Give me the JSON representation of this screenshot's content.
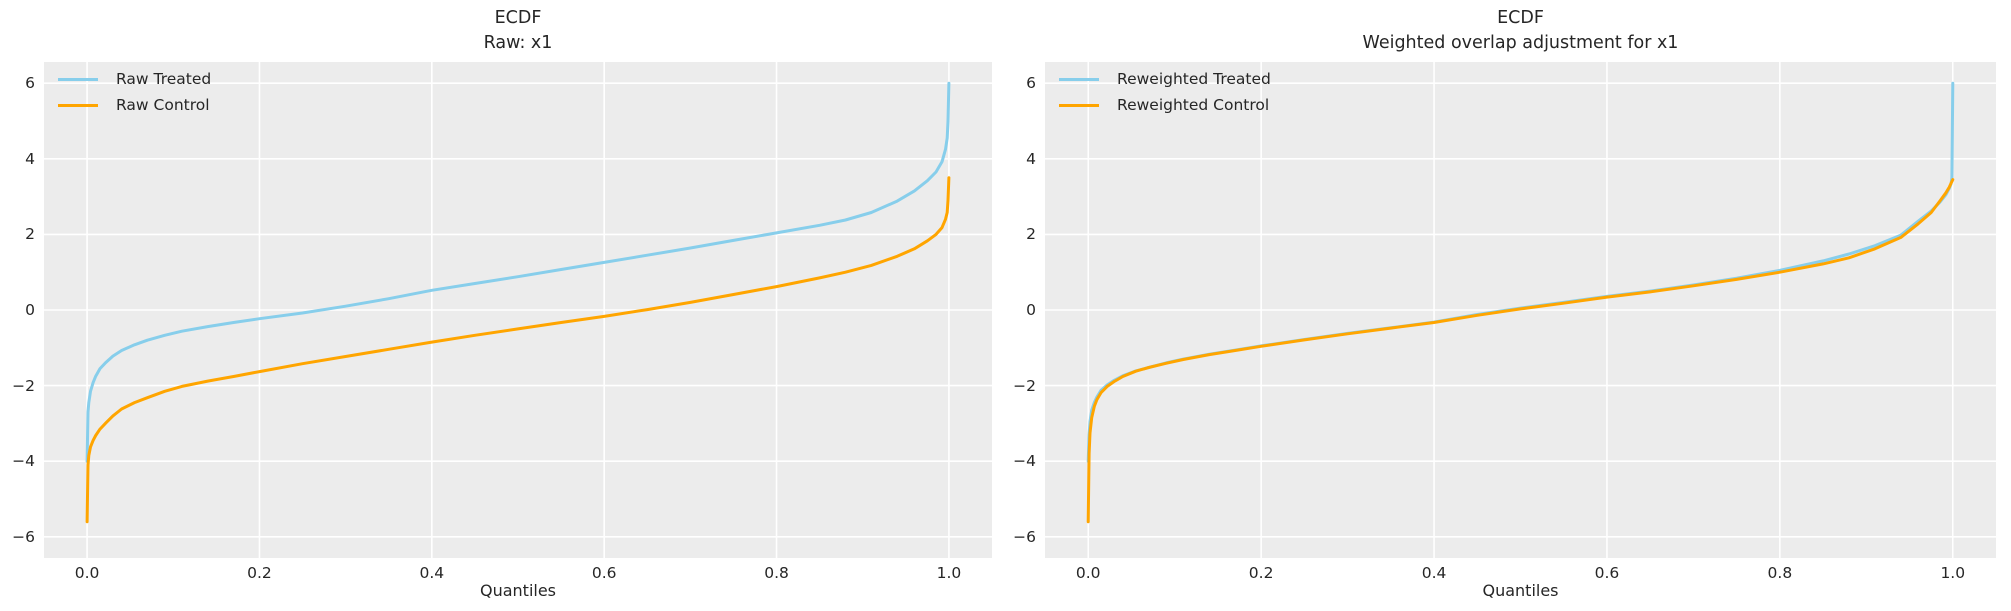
{
  "figure": {
    "background": "#FFFFFF"
  },
  "colors": {
    "treated_line": "#87CEEB",
    "control_line": "#FFA500",
    "axes_bg": "#ECECEC",
    "grid": "#FFFFFF",
    "text": "#262626"
  },
  "chart_data": [
    {
      "type": "line",
      "title_line1": "ECDF",
      "title_line2": "Raw: x1",
      "xlabel": "Quantiles",
      "ylabel": "",
      "grid": true,
      "legend_position": "upper-left",
      "xlim": [
        -0.05,
        1.05
      ],
      "ylim": [
        -6.56,
        6.56
      ],
      "x_ticks": [
        0.0,
        0.2,
        0.4,
        0.6,
        0.8,
        1.0
      ],
      "x_tick_labels": [
        "0.0",
        "0.2",
        "0.4",
        "0.6",
        "0.8",
        "1.0"
      ],
      "y_ticks": [
        -6,
        -4,
        -2,
        0,
        2,
        4,
        6
      ],
      "y_tick_labels": [
        "−6",
        "−4",
        "−2",
        "0",
        "2",
        "4",
        "6"
      ],
      "series": [
        {
          "name": "Raw Treated",
          "color": "#87CEEB",
          "x": [
            0.0,
            0.001,
            0.002,
            0.004,
            0.007,
            0.01,
            0.015,
            0.022,
            0.03,
            0.04,
            0.055,
            0.07,
            0.09,
            0.11,
            0.14,
            0.17,
            0.2,
            0.25,
            0.3,
            0.35,
            0.4,
            0.45,
            0.5,
            0.55,
            0.6,
            0.65,
            0.7,
            0.75,
            0.8,
            0.85,
            0.88,
            0.91,
            0.94,
            0.96,
            0.975,
            0.985,
            0.992,
            0.996,
            0.998,
            0.999,
            1.0
          ],
          "y": [
            -4.0,
            -2.7,
            -2.45,
            -2.15,
            -1.92,
            -1.75,
            -1.55,
            -1.38,
            -1.22,
            -1.07,
            -0.92,
            -0.8,
            -0.67,
            -0.56,
            -0.44,
            -0.33,
            -0.23,
            -0.08,
            0.1,
            0.3,
            0.52,
            0.7,
            0.88,
            1.07,
            1.26,
            1.45,
            1.64,
            1.84,
            2.04,
            2.24,
            2.38,
            2.58,
            2.88,
            3.15,
            3.42,
            3.65,
            3.92,
            4.25,
            4.55,
            5.0,
            6.0
          ]
        },
        {
          "name": "Raw Control",
          "color": "#FFA500",
          "x": [
            0.0,
            0.001,
            0.002,
            0.004,
            0.007,
            0.01,
            0.015,
            0.022,
            0.03,
            0.04,
            0.055,
            0.07,
            0.09,
            0.11,
            0.14,
            0.17,
            0.2,
            0.25,
            0.3,
            0.35,
            0.4,
            0.45,
            0.5,
            0.55,
            0.6,
            0.65,
            0.7,
            0.75,
            0.8,
            0.85,
            0.88,
            0.91,
            0.94,
            0.96,
            0.975,
            0.985,
            0.992,
            0.996,
            0.998,
            0.999,
            1.0
          ],
          "y": [
            -5.6,
            -4.1,
            -3.85,
            -3.62,
            -3.45,
            -3.32,
            -3.15,
            -2.98,
            -2.8,
            -2.62,
            -2.45,
            -2.32,
            -2.15,
            -2.02,
            -1.88,
            -1.76,
            -1.63,
            -1.42,
            -1.23,
            -1.04,
            -0.85,
            -0.67,
            -0.5,
            -0.33,
            -0.17,
            0.01,
            0.2,
            0.41,
            0.62,
            0.85,
            1.0,
            1.18,
            1.42,
            1.62,
            1.83,
            2.0,
            2.18,
            2.4,
            2.58,
            2.9,
            3.5
          ]
        }
      ]
    },
    {
      "type": "line",
      "title_line1": "ECDF",
      "title_line2": "Weighted overlap adjustment for x1",
      "xlabel": "Quantiles",
      "ylabel": "",
      "grid": true,
      "legend_position": "upper-left",
      "xlim": [
        -0.05,
        1.05
      ],
      "ylim": [
        -6.56,
        6.56
      ],
      "x_ticks": [
        0.0,
        0.2,
        0.4,
        0.6,
        0.8,
        1.0
      ],
      "x_tick_labels": [
        "0.0",
        "0.2",
        "0.4",
        "0.6",
        "0.8",
        "1.0"
      ],
      "y_ticks": [
        -6,
        -4,
        -2,
        0,
        2,
        4,
        6
      ],
      "y_tick_labels": [
        "−6",
        "−4",
        "−2",
        "0",
        "2",
        "4",
        "6"
      ],
      "series": [
        {
          "name": "Reweighted Treated",
          "color": "#87CEEB",
          "x": [
            0.0,
            0.001,
            0.002,
            0.004,
            0.007,
            0.01,
            0.015,
            0.022,
            0.03,
            0.04,
            0.055,
            0.07,
            0.09,
            0.11,
            0.14,
            0.17,
            0.2,
            0.25,
            0.3,
            0.35,
            0.4,
            0.45,
            0.5,
            0.55,
            0.6,
            0.65,
            0.7,
            0.75,
            0.8,
            0.85,
            0.88,
            0.91,
            0.94,
            0.96,
            0.975,
            0.985,
            0.992,
            0.996,
            0.998,
            0.999,
            1.0
          ],
          "y": [
            -4.0,
            -3.3,
            -2.95,
            -2.65,
            -2.45,
            -2.3,
            -2.12,
            -1.98,
            -1.86,
            -1.74,
            -1.61,
            -1.52,
            -1.4,
            -1.3,
            -1.17,
            -1.06,
            -0.95,
            -0.78,
            -0.62,
            -0.47,
            -0.32,
            -0.12,
            0.05,
            0.2,
            0.36,
            0.5,
            0.66,
            0.84,
            1.05,
            1.3,
            1.48,
            1.7,
            1.98,
            2.35,
            2.62,
            2.85,
            3.05,
            3.22,
            3.33,
            3.5,
            6.0
          ]
        },
        {
          "name": "Reweighted Control",
          "color": "#FFA500",
          "x": [
            0.0,
            0.001,
            0.002,
            0.004,
            0.007,
            0.01,
            0.015,
            0.022,
            0.03,
            0.04,
            0.055,
            0.07,
            0.09,
            0.11,
            0.14,
            0.17,
            0.2,
            0.25,
            0.3,
            0.35,
            0.4,
            0.45,
            0.5,
            0.55,
            0.6,
            0.65,
            0.7,
            0.75,
            0.8,
            0.85,
            0.88,
            0.91,
            0.94,
            0.96,
            0.975,
            0.985,
            0.992,
            0.996,
            0.998,
            0.999,
            1.0
          ],
          "y": [
            -5.6,
            -3.8,
            -3.25,
            -2.85,
            -2.55,
            -2.37,
            -2.18,
            -2.02,
            -1.89,
            -1.76,
            -1.62,
            -1.52,
            -1.41,
            -1.31,
            -1.18,
            -1.07,
            -0.96,
            -0.79,
            -0.63,
            -0.48,
            -0.33,
            -0.14,
            0.03,
            0.18,
            0.34,
            0.48,
            0.64,
            0.81,
            1.0,
            1.22,
            1.38,
            1.62,
            1.92,
            2.28,
            2.58,
            2.88,
            3.1,
            3.25,
            3.35,
            3.4,
            3.45
          ]
        }
      ]
    }
  ]
}
